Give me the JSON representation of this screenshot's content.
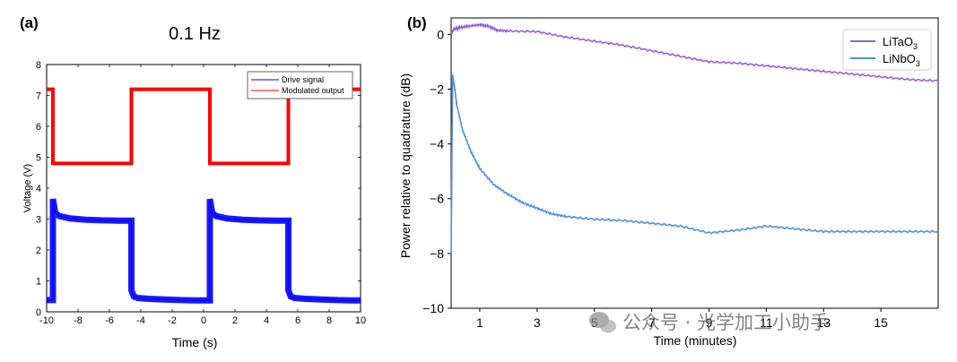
{
  "watermark": "公众号 · 光学加工小助手",
  "chart_data": [
    {
      "panel_label": "(a)",
      "type": "line",
      "title": "0.1 Hz",
      "xlabel": "Time (s)",
      "ylabel": "Voltage (V)",
      "xlim": [
        -10,
        10
      ],
      "ylim": [
        0,
        8
      ],
      "xticks": [
        -10,
        -8,
        -6,
        -4,
        -2,
        0,
        2,
        4,
        6,
        8,
        10
      ],
      "yticks": [
        0,
        1,
        2,
        3,
        4,
        5,
        6,
        7,
        8
      ],
      "xtick_labels": [
        "-10",
        "-8",
        "-6",
        "-4",
        "-2",
        "0",
        "2",
        "4",
        "6",
        "8",
        "10"
      ],
      "ytick_labels": [
        "0",
        "1",
        "2",
        "3",
        "4",
        "5",
        "6",
        "7",
        "8"
      ],
      "legend_position": "top-right",
      "series": [
        {
          "name": "Drive signal",
          "color": "#0000ff",
          "x": [
            -10,
            -9.6,
            -9.6,
            -9.45,
            -9.2,
            -8.5,
            -7.5,
            -6.5,
            -5.5,
            -4.6,
            -4.6,
            -4.45,
            -4.2,
            -3.5,
            -2.5,
            -1.5,
            -0.5,
            0.4,
            0.4,
            0.55,
            0.8,
            1.5,
            2.5,
            3.5,
            4.5,
            5.4,
            5.4,
            5.55,
            5.8,
            6.5,
            7.5,
            8.5,
            9.5,
            10
          ],
          "y": [
            0.38,
            0.38,
            3.65,
            3.2,
            3.1,
            3.02,
            2.98,
            2.96,
            2.95,
            2.95,
            0.7,
            0.5,
            0.45,
            0.42,
            0.4,
            0.38,
            0.37,
            0.37,
            3.65,
            3.2,
            3.1,
            3.02,
            2.98,
            2.96,
            2.95,
            2.95,
            0.7,
            0.5,
            0.45,
            0.42,
            0.4,
            0.38,
            0.37,
            0.37
          ]
        },
        {
          "name": "Modulated output",
          "color": "#ff0000",
          "x": [
            -10,
            -9.6,
            -9.6,
            -4.6,
            -4.6,
            0.4,
            0.4,
            5.4,
            5.4,
            10
          ],
          "y": [
            7.2,
            7.2,
            4.8,
            4.8,
            7.2,
            7.2,
            4.8,
            4.8,
            7.2,
            7.2
          ]
        }
      ]
    },
    {
      "panel_label": "(b)",
      "type": "line",
      "title": "",
      "xlabel": "Time (minutes)",
      "ylabel": "Power relative to quadrature (dB)",
      "xlim": [
        0,
        17
      ],
      "ylim": [
        -10,
        0.6
      ],
      "xticks": [
        1,
        3,
        5,
        7,
        9,
        11,
        13,
        15
      ],
      "yticks": [
        0,
        -2,
        -4,
        -6,
        -8,
        -10
      ],
      "xtick_labels": [
        "1",
        "3",
        "5",
        "7",
        "9",
        "11",
        "13",
        "15"
      ],
      "ytick_labels": [
        "0",
        "−2",
        "−4",
        "−6",
        "−8",
        "−10"
      ],
      "legend_position": "top-right",
      "legend_labels": [
        {
          "base": "LiTaO",
          "sub": "3"
        },
        {
          "base": "LiNbO",
          "sub": "3"
        }
      ],
      "series": [
        {
          "name": "LiTaO3",
          "color": "#9a5fd6",
          "x": [
            0,
            0.1,
            0.3,
            0.6,
            1.0,
            1.3,
            1.6,
            2.0,
            3.0,
            4.0,
            5.0,
            6.0,
            7.0,
            8.0,
            9.0,
            10.0,
            11.0,
            12.0,
            13.0,
            14.0,
            15.0,
            16.0,
            17.0
          ],
          "y": [
            0,
            0.2,
            0.25,
            0.3,
            0.35,
            0.3,
            0.15,
            0.12,
            0.1,
            -0.1,
            -0.25,
            -0.4,
            -0.6,
            -0.8,
            -1.0,
            -1.05,
            -1.15,
            -1.25,
            -1.35,
            -1.45,
            -1.55,
            -1.65,
            -1.7
          ]
        },
        {
          "name": "LiNbO3",
          "color": "#4f8fe0",
          "x": [
            0,
            0.05,
            0.1,
            0.2,
            0.4,
            0.7,
            1.0,
            1.5,
            2.0,
            2.5,
            3.0,
            3.5,
            4.0,
            5.0,
            6.0,
            7.0,
            8.0,
            9.0,
            10.0,
            11.0,
            12.0,
            13.0,
            14.0,
            15.0,
            16.0,
            17.0
          ],
          "y": [
            -8.0,
            -1.5,
            -1.8,
            -2.6,
            -3.5,
            -4.3,
            -4.9,
            -5.5,
            -5.85,
            -6.15,
            -6.35,
            -6.55,
            -6.65,
            -6.75,
            -6.8,
            -6.9,
            -7.0,
            -7.25,
            -7.15,
            -7.0,
            -7.1,
            -7.2,
            -7.2,
            -7.2,
            -7.2,
            -7.2
          ]
        }
      ]
    }
  ]
}
